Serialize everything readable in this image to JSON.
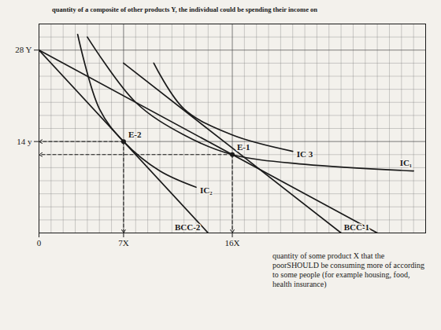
{
  "chart_data": {
    "type": "line",
    "title": "quantity of a composite of other products  Y, the individual could be spending their income on",
    "x_label": "quantity of some product X that the poorSHOULD be consuming more of according to some people (for example housing, food, health insurance)",
    "xlim": [
      0,
      32
    ],
    "ylim": [
      0,
      32
    ],
    "xticks": [
      0,
      {
        "value": 7,
        "label": "7X"
      },
      {
        "value": 16,
        "label": "16X"
      }
    ],
    "yticks": [
      {
        "value": 14,
        "label": "14 y"
      },
      {
        "value": 28,
        "label": "28 Y"
      }
    ],
    "grid": true,
    "color": "#1a1a1a",
    "series": [
      {
        "name": "BCC-1",
        "type": "line",
        "x": [
          0,
          28
        ],
        "values": [
          28,
          0
        ]
      },
      {
        "name": "BCC-2",
        "type": "line",
        "x": [
          0,
          14
        ],
        "values": [
          28,
          0
        ]
      },
      {
        "name": null,
        "type": "line",
        "x": [
          7,
          16,
          25
        ],
        "values": [
          26,
          13,
          0
        ]
      },
      {
        "name": "IC₁",
        "type": "curve",
        "x": [
          4,
          8,
          12,
          16,
          22,
          31
        ],
        "values": [
          30,
          20,
          15,
          12,
          10.5,
          9.5
        ]
      },
      {
        "name": "IC₂",
        "type": "curve",
        "x": [
          3.2,
          5,
          7,
          10,
          13
        ],
        "values": [
          30.4,
          19,
          14,
          9.5,
          7
        ]
      },
      {
        "name": "IC 3",
        "type": "curve",
        "x": [
          9.5,
          12,
          16,
          21
        ],
        "values": [
          26,
          19,
          15,
          12.5
        ]
      }
    ],
    "points": [
      {
        "name": "E-1",
        "x": 16,
        "y": 12
      },
      {
        "name": "E-2",
        "x": 7,
        "y": 14
      }
    ]
  }
}
